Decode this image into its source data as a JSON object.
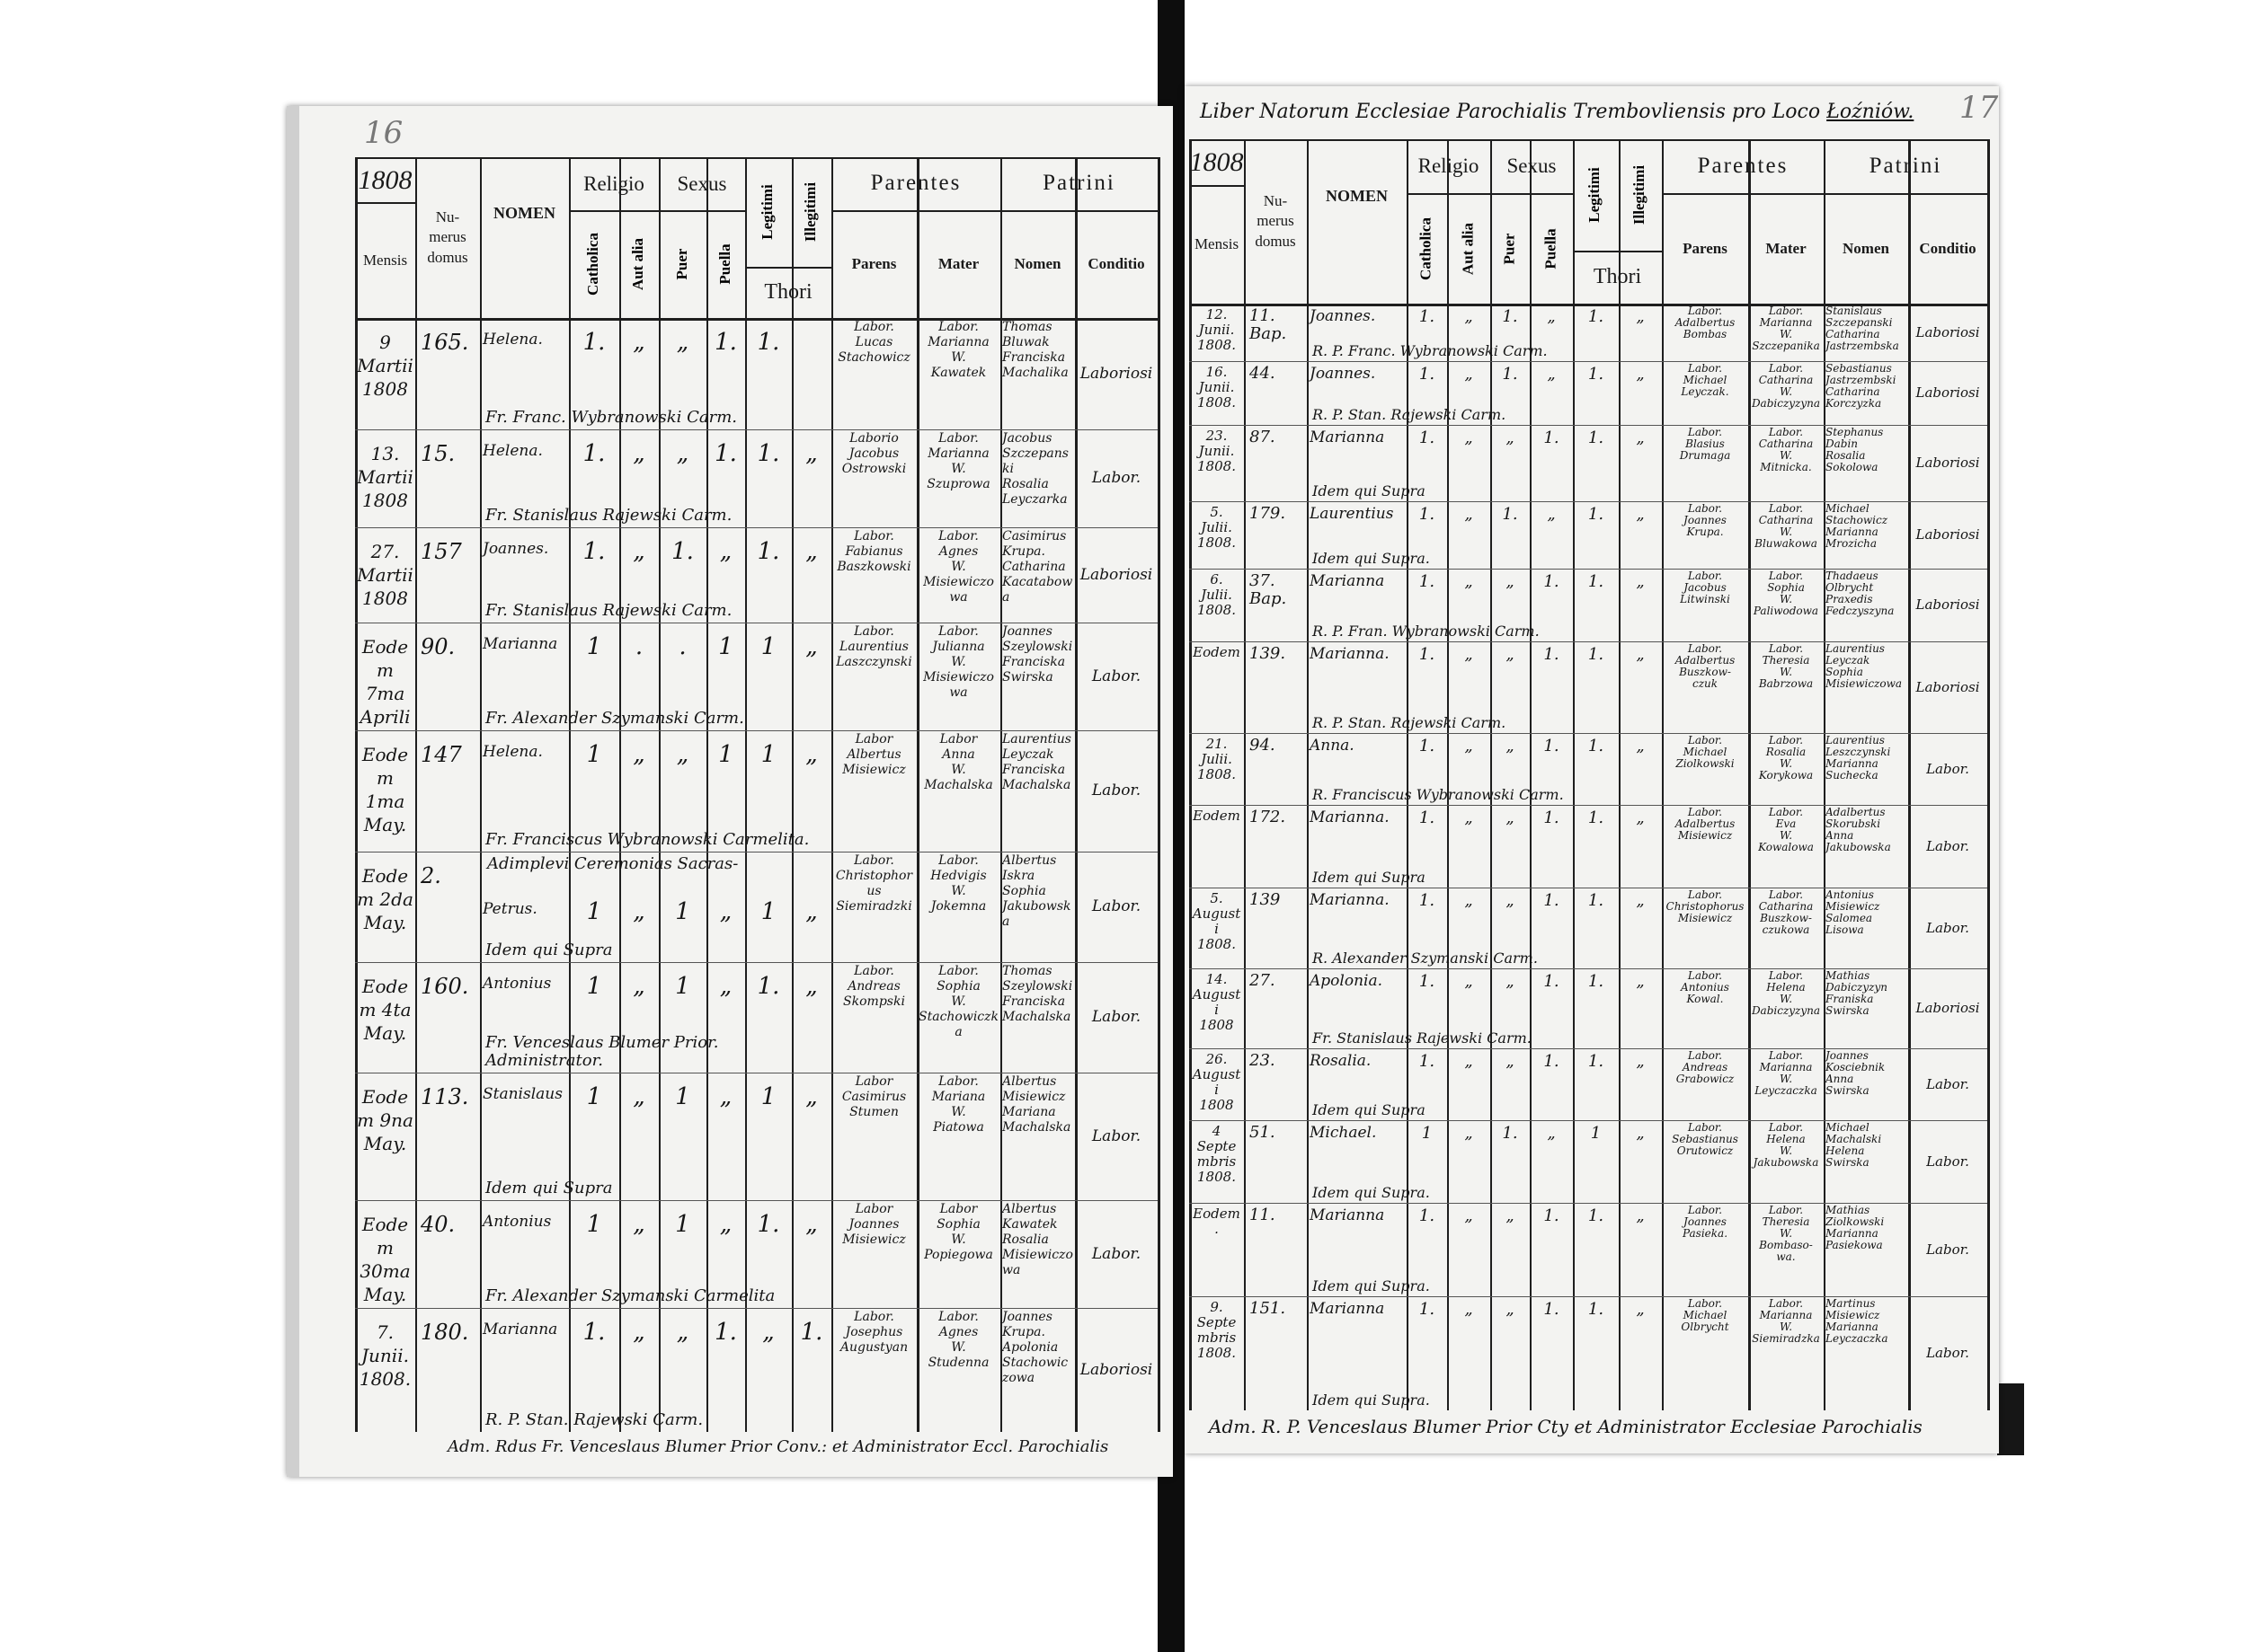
{
  "document": {
    "title_prefix": "Liber Natorum Ecclesiae Parochialis Trembovliensis pro Loco",
    "title_place": "Łoźniów.",
    "left_page_number": "16",
    "right_page_number": "17",
    "header": {
      "year": "1808",
      "mensis": "Mensis",
      "numerus": "Nu-\nmerus\ndomus",
      "nomen": "NOMEN",
      "religio": "Religio",
      "catholica": "Catholica",
      "aut_alia": "Aut alia",
      "sexus": "Sexus",
      "puer": "Puer",
      "puella": "Puella",
      "legitimi": "Legitimi",
      "illegitimi": "Illegitimi",
      "thori": "Thori",
      "parentes": "Parentes",
      "parens": "Parens",
      "mater": "Mater",
      "patrini": "Patrini",
      "patrini_nomen": "Nomen",
      "conditio": "Conditio"
    },
    "left_footer": "Adm. Rdus Fr. Venceslaus Blumer Prior Conv.: et Administrator Eccl. Parochialis",
    "right_footer": "Adm. R. P. Venceslaus Blumer Prior Cty et Administrator Ecclesiae Parochialis"
  },
  "left_rows": [
    {
      "mensis": "9\nMartii\n1808",
      "numerus": "165.",
      "nomen": "Helena.",
      "marks": [
        "1.",
        "„",
        "„",
        "1.",
        "1.",
        ""
      ],
      "officiant": "Fr. Franc. Wybranowski Carm.",
      "parens": "Labor.\nLucas\nStachowicz",
      "mater": "Labor.\nMarianna\nW.\nKawatek",
      "patrini": "Thomas\nBluwak\nFranciska\nMachalika",
      "conditio": "Laboriosi"
    },
    {
      "mensis": "13.\nMartii\n1808",
      "numerus": "15.",
      "nomen": "Helena.",
      "marks": [
        "1.",
        "„",
        "„",
        "1.",
        "1.",
        "„"
      ],
      "officiant": "Fr. Stanislaus Rajewski Carm.",
      "parens": "Laborio\nJacobus\nOstrowski",
      "mater": "Labor.\nMarianna\nW.\nSzuprowa",
      "patrini": "Jacobus\nSzczepanski\nRosalia\nLeyczarka",
      "conditio": "Labor."
    },
    {
      "mensis": "27.\nMartii\n1808",
      "numerus": "157",
      "nomen": "Joannes.",
      "marks": [
        "1.",
        "„",
        "1.",
        "„",
        "1.",
        "„"
      ],
      "officiant": "Fr. Stanislaus Rajewski Carm.",
      "parens": "Labor.\nFabianus\nBaszkowski",
      "mater": "Labor.\nAgnes\nW.\nMisiewiczowa",
      "patrini": "Casimirus\nKrupa.\nCatharina\nKacatabowa",
      "conditio": "Laboriosi"
    },
    {
      "mensis": "Eodem 7ma\nAprilis",
      "numerus": "90.",
      "nomen": "Marianna",
      "marks": [
        "1",
        ".",
        ".",
        "1",
        "1",
        "„"
      ],
      "officiant": "Fr. Alexander Szymanski Carm.",
      "parens": "Labor.\nLaurentius\nLaszczynski",
      "mater": "Labor.\nJulianna\nW.\nMisiewiczowa",
      "patrini": "Joannes\nSzeylowski\nFranciska\nSwirska",
      "conditio": "Labor."
    },
    {
      "mensis": "Eodem 1ma\nMay.",
      "numerus": "147",
      "nomen": "Helena.",
      "marks": [
        "1",
        "„",
        "„",
        "1",
        "1",
        "„"
      ],
      "officiant": "Fr. Franciscus Wybranowski Carmelita.",
      "parens": "Labor\nAlbertus\nMisiewicz",
      "mater": "Labor\nAnna\nW.\nMachalska",
      "patrini": "Laurentius\nLeyczak\nFranciska\nMachalska",
      "conditio": "Labor."
    },
    {
      "mensis": "Eodem 2da\nMay.",
      "numerus": "2.",
      "nomen": "Petrus.",
      "marks": [
        "1",
        "„",
        "1",
        "„",
        "1",
        "„"
      ],
      "note": "Adimplevi Ceremonias Sacras-",
      "officiant": "Idem qui Supra",
      "parens": "Labor.\nChristophorus\nSiemiradzki",
      "mater": "Labor.\nHedvigis\nW.\nJokemna",
      "patrini": "Albertus\nIskra\nSophia\nJakubowska",
      "conditio": "Labor."
    },
    {
      "mensis": "Eodem 4ta\nMay.",
      "numerus": "160.",
      "nomen": "Antonius",
      "marks": [
        "1",
        "„",
        "1",
        "„",
        "1.",
        "„"
      ],
      "officiant": "Fr. Venceslaus Blumer Prior. Administrator.",
      "parens": "Labor.\nAndreas\nSkompski",
      "mater": "Labor.\nSophia\nW.\nStachowiczka",
      "patrini": "Thomas\nSzeylowski\nFranciska\nMachalska",
      "conditio": "Labor."
    },
    {
      "mensis": "Eodem 9na\nMay.",
      "numerus": "113.",
      "nomen": "Stanislaus",
      "marks": [
        "1",
        "„",
        "1",
        "„",
        "1",
        "„"
      ],
      "officiant": "Idem qui Supra",
      "parens": "Labor\nCasimirus\nStumen",
      "mater": "Labor.\nMariana\nW.\nPiatowa",
      "patrini": "Albertus\nMisiewicz\nMariana\nMachalska",
      "conditio": "Labor."
    },
    {
      "mensis": "Eodem 30ma\nMay.",
      "numerus": "40.",
      "nomen": "Antonius",
      "marks": [
        "1",
        "„",
        "1",
        "„",
        "1.",
        "„"
      ],
      "officiant": "Fr. Alexander Szymanski Carmelita",
      "parens": "Labor\nJoannes\nMisiewicz",
      "mater": "Labor\nSophia\nW.\nPopiegowa",
      "patrini": "Albertus\nKawatek\nRosalia\nMisiewiczowa",
      "conditio": "Labor."
    },
    {
      "mensis": "7.\nJunii.\n1808.",
      "numerus": "180.",
      "nomen": "Marianna",
      "marks": [
        "1.",
        "„",
        "„",
        "1.",
        "„",
        "1."
      ],
      "officiant": "R. P. Stan. Rajewski Carm.",
      "parens": "Labor.\nJosephus\nAugustyan",
      "mater": "Labor.\nAgnes\nW.\nStudenna",
      "patrini": "Joannes\nKrupa.\nApolonia\nStachowiczowa",
      "conditio": "Laboriosi"
    }
  ],
  "right_rows": [
    {
      "mensis": "12.\nJunii.\n1808.",
      "numerus": "11.\nBap.",
      "nomen": "Joannes.",
      "marks": [
        "1.",
        "„",
        "1.",
        "„",
        "1.",
        "„"
      ],
      "officiant": "R. P. Franc. Wybranowski Carm.",
      "parens": "Labor.\nAdalbertus\nBombas",
      "mater": "Labor.\nMarianna\nW.\nSzczepanika",
      "patrini": "Stanislaus\nSzczepanski\nCatharina\nJastrzembska",
      "conditio": "Laboriosi"
    },
    {
      "mensis": "16.\nJunii.\n1808.",
      "numerus": "44.",
      "nomen": "Joannes.",
      "marks": [
        "1.",
        "„",
        "1.",
        "„",
        "1.",
        "„"
      ],
      "officiant": "R. P. Stan. Rajewski Carm.",
      "parens": "Labor.\nMichael\nLeyczak.",
      "mater": "Labor.\nCatharina\nW.\nDabiczyzyna",
      "patrini": "Sebastianus\nJastrzembski\nCatharina\nKorczyzka",
      "conditio": "Laboriosi"
    },
    {
      "mensis": "23.\nJunii.\n1808.",
      "numerus": "87.",
      "nomen": "Marianna",
      "marks": [
        "1.",
        "„",
        "„",
        "1.",
        "1.",
        "„"
      ],
      "officiant": "Idem qui Supra",
      "parens": "Labor.\nBlasius\nDrumaga",
      "mater": "Labor.\nCatharina\nW.\nMitnicka.",
      "patrini": "Stephanus\nDabin\nRosalia\nSokolowa",
      "conditio": "Laboriosi"
    },
    {
      "mensis": "5.\nJulii.\n1808.",
      "numerus": "179.",
      "nomen": "Laurentius",
      "marks": [
        "1.",
        "„",
        "1.",
        "„",
        "1.",
        "„"
      ],
      "officiant": "Idem qui Supra.",
      "parens": "Labor.\nJoannes\nKrupa.",
      "mater": "Labor.\nCatharina\nW.\nBluwakowa",
      "patrini": "Michael\nStachowicz\nMarianna\nMrozicha",
      "conditio": "Laboriosi"
    },
    {
      "mensis": "6.\nJulii.\n1808.",
      "numerus": "37.\nBap.",
      "nomen": "Marianna",
      "marks": [
        "1.",
        "„",
        "„",
        "1.",
        "1.",
        "„"
      ],
      "officiant": "R. P. Fran. Wybranowski Carm.",
      "parens": "Labor.\nJacobus\nLitwinski",
      "mater": "Labor.\nSophia\nW.\nPaliwodowa",
      "patrini": "Thadaeus\nOlbrycht\nPraxedis\nFedczyszyna",
      "conditio": "Laboriosi"
    },
    {
      "mensis": "Eodem",
      "numerus": "139.",
      "nomen": "Marianna.",
      "marks": [
        "1.",
        "„",
        "„",
        "1.",
        "1.",
        "„"
      ],
      "officiant": "R. P. Stan. Rajewski Carm.",
      "parens": "Labor.\nAdalbertus\nBuszkow-\nczuk",
      "mater": "Labor.\nTheresia\nW.\nBabrzowa",
      "patrini": "Laurentius\nLeyczak\nSophia\nMisiewiczowa",
      "conditio": "Laboriosi"
    },
    {
      "mensis": "21.\nJulii.\n1808.",
      "numerus": "94.",
      "nomen": "Anna.",
      "marks": [
        "1.",
        "„",
        "„",
        "1.",
        "1.",
        "„"
      ],
      "officiant": "R. Franciscus Wybranowski Carm.",
      "parens": "Labor.\nMichael\nZiolkowski",
      "mater": "Labor.\nRosalia\nW.\nKorykowa",
      "patrini": "Laurentius\nLeszczynski\nMarianna\nSuchecka",
      "conditio": "Labor."
    },
    {
      "mensis": "Eodem",
      "numerus": "172.",
      "nomen": "Marianna.",
      "marks": [
        "1.",
        "„",
        "„",
        "1.",
        "1.",
        "„"
      ],
      "officiant": "Idem qui Supra",
      "parens": "Labor.\nAdalbertus\nMisiewicz",
      "mater": "Labor.\nEva\nW.\nKowalowa",
      "patrini": "Adalbertus\nSkorubski\nAnna\nJakubowska",
      "conditio": "Labor."
    },
    {
      "mensis": "5.\nAugusti\n1808.",
      "numerus": "139",
      "nomen": "Marianna.",
      "marks": [
        "1.",
        "„",
        "„",
        "1.",
        "1.",
        "„"
      ],
      "officiant": "R. Alexander Szymanski Carm.",
      "parens": "Labor.\nChristophorus\nMisiewicz",
      "mater": "Labor.\nCatharina\nBuszkow-\nczukowa",
      "patrini": "Antonius\nMisiewicz\nSalomea\nLisowa",
      "conditio": "Labor."
    },
    {
      "mensis": "14.\nAugusti\n1808",
      "numerus": "27.",
      "nomen": "Apolonia.",
      "marks": [
        "1.",
        "„",
        "„",
        "1.",
        "1.",
        "„"
      ],
      "officiant": "Fr. Stanislaus Rajewski Carm.",
      "parens": "Labor.\nAntonius\nKowal.",
      "mater": "Labor.\nHelena\nW.\nDabiczyzyna",
      "patrini": "Mathias\nDabiczyzyn\nFraniska\nSwirska",
      "conditio": "Laboriosi"
    },
    {
      "mensis": "26.\nAugusti\n1808",
      "numerus": "23.",
      "nomen": "Rosalia.",
      "marks": [
        "1.",
        "„",
        "„",
        "1.",
        "1.",
        "„"
      ],
      "officiant": "Idem qui Supra",
      "parens": "Labor.\nAndreas\nGrabowicz",
      "mater": "Labor.\nMarianna\nW.\nLeyczaczka",
      "patrini": "Joannes\nKosciebnik\nAnna\nSwirska",
      "conditio": "Labor."
    },
    {
      "mensis": "4\nSeptembris\n1808.",
      "numerus": "51.",
      "nomen": "Michael.",
      "marks": [
        "1",
        "„",
        "1.",
        "„",
        "1",
        "„"
      ],
      "officiant": "Idem qui Supra.",
      "parens": "Labor.\nSebastianus\nOrutowicz",
      "mater": "Labor.\nHelena\nW.\nJakubowska",
      "patrini": "Michael\nMachalski\nHelena\nSwirska",
      "conditio": "Labor."
    },
    {
      "mensis": "Eodem.",
      "numerus": "11.",
      "nomen": "Marianna",
      "marks": [
        "1.",
        "„",
        "„",
        "1.",
        "1.",
        "„"
      ],
      "officiant": "Idem qui Supra.",
      "parens": "Labor.\nJoannes\nPasieka.",
      "mater": "Labor.\nTheresia\nW.\nBombaso-\nwa.",
      "patrini": "Mathias\nZiolkowski\nMarianna\nPasiekowa",
      "conditio": "Labor."
    },
    {
      "mensis": "9.\nSeptembris\n1808.",
      "numerus": "151.",
      "nomen": "Marianna",
      "marks": [
        "1.",
        "„",
        "„",
        "1.",
        "1.",
        "„"
      ],
      "officiant": "Idem qui Supra.",
      "parens": "Labor.\nMichael\nOlbrycht",
      "mater": "Labor.\nMarianna\nW.\nSiemiradzka",
      "patrini": "Martinus\nMisiewicz\nMarianna\nLeyczaczka",
      "conditio": "Labor."
    }
  ],
  "colors": {
    "paper": "#f3f3f1",
    "ink": "#151515",
    "gutter": "#0d0d0d"
  }
}
